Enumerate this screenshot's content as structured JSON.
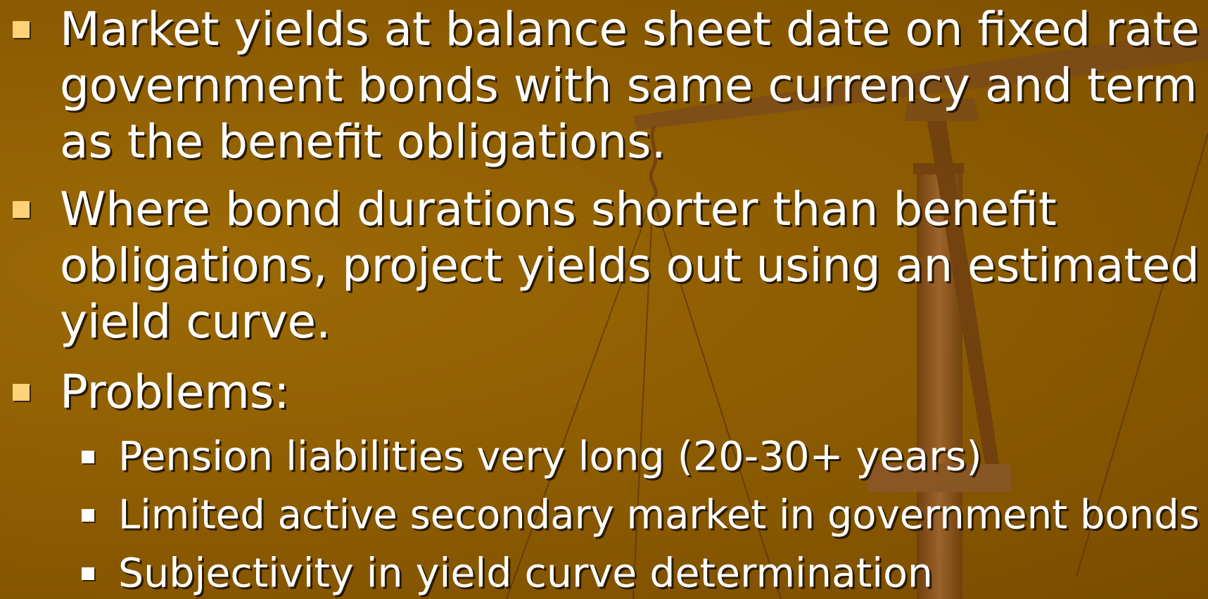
{
  "bullets": [
    {
      "lines": [
        "Market yields at balance sheet date on fixed rate",
        "government bonds with same currency and term",
        "as the benefit obligations."
      ]
    },
    {
      "lines": [
        "Where bond durations shorter than benefit",
        "obligations, project yields out using an estimated",
        "yield curve."
      ]
    },
    {
      "lines": [
        "Problems:"
      ],
      "sub_bullets": [
        "Pension liabilities very long (20-30+ years)",
        "Limited active secondary market in government bonds",
        "Subjectivity in yield curve determination"
      ]
    }
  ]
}
